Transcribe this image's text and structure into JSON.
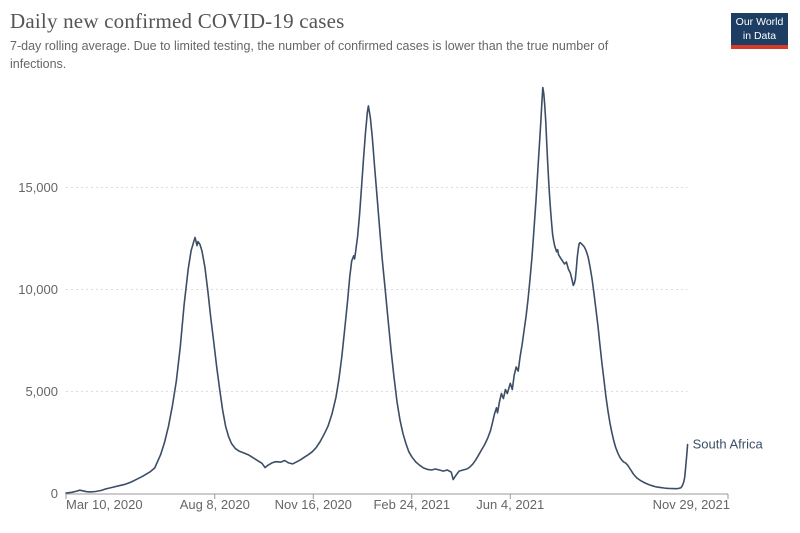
{
  "header": {
    "title": "Daily new confirmed COVID-19 cases",
    "subtitle": "7-day rolling average. Due to limited testing, the number of confirmed cases is lower than the true number of infections.",
    "logo": {
      "line1": "Our World",
      "line2": "in Data"
    }
  },
  "colors": {
    "line": "#3C4E66",
    "entity_label": "#3C4E66",
    "grid": "#DDDDDD",
    "axis": "#999999",
    "tick_label": "#666666",
    "title": "#555555",
    "subtitle": "#666666",
    "logo_bg": "#1D3D63",
    "logo_red": "#D73A27",
    "background": "#FFFFFF"
  },
  "chart_data": {
    "type": "line",
    "title": "Daily new confirmed COVID-19 cases",
    "subtitle": "7-day rolling average. Due to limited testing, the number of confirmed cases is lower than the true number of infections.",
    "entity": "South Africa",
    "xlabel": "",
    "ylabel": "",
    "grid": true,
    "legend_position": "end-of-line-label",
    "ylim": [
      0,
      20000
    ],
    "y_ticks": [
      {
        "value": 0,
        "label": "0"
      },
      {
        "value": 5000,
        "label": "5,000"
      },
      {
        "value": 10000,
        "label": "10,000"
      },
      {
        "value": 15000,
        "label": "15,000"
      }
    ],
    "x_domain": [
      "2020-03-10",
      "2022-01-11"
    ],
    "x_ticks": [
      {
        "date": "2020-03-10",
        "label": "Mar 10, 2020",
        "align": "start"
      },
      {
        "date": "2020-08-08",
        "label": "Aug 8, 2020",
        "align": "middle"
      },
      {
        "date": "2020-11-16",
        "label": "Nov 16, 2020",
        "align": "middle"
      },
      {
        "date": "2021-02-24",
        "label": "Feb 24, 2021",
        "align": "middle"
      },
      {
        "date": "2021-06-04",
        "label": "Jun 4, 2021",
        "align": "middle"
      },
      {
        "date": "2021-11-29",
        "label": "Nov 29, 2021",
        "align": "end"
      }
    ],
    "series": [
      {
        "name": "South Africa",
        "points": [
          [
            "2020-03-10",
            25
          ],
          [
            "2020-03-16",
            60
          ],
          [
            "2020-03-21",
            120
          ],
          [
            "2020-03-24",
            160
          ],
          [
            "2020-03-27",
            130
          ],
          [
            "2020-03-31",
            90
          ],
          [
            "2020-04-04",
            80
          ],
          [
            "2020-04-09",
            100
          ],
          [
            "2020-04-15",
            150
          ],
          [
            "2020-04-19",
            220
          ],
          [
            "2020-04-26",
            300
          ],
          [
            "2020-05-03",
            380
          ],
          [
            "2020-05-09",
            450
          ],
          [
            "2020-05-15",
            560
          ],
          [
            "2020-05-21",
            700
          ],
          [
            "2020-05-27",
            850
          ],
          [
            "2020-06-03",
            1050
          ],
          [
            "2020-06-08",
            1250
          ],
          [
            "2020-06-14",
            1900
          ],
          [
            "2020-06-18",
            2500
          ],
          [
            "2020-06-22",
            3300
          ],
          [
            "2020-06-26",
            4300
          ],
          [
            "2020-06-30",
            5500
          ],
          [
            "2020-07-04",
            7200
          ],
          [
            "2020-07-08",
            9300
          ],
          [
            "2020-07-12",
            11000
          ],
          [
            "2020-07-15",
            11900
          ],
          [
            "2020-07-18",
            12400
          ],
          [
            "2020-07-19",
            12550
          ],
          [
            "2020-07-21",
            12150
          ],
          [
            "2020-07-22",
            12350
          ],
          [
            "2020-07-24",
            12200
          ],
          [
            "2020-07-26",
            11900
          ],
          [
            "2020-07-29",
            11100
          ],
          [
            "2020-08-01",
            9900
          ],
          [
            "2020-08-04",
            8600
          ],
          [
            "2020-08-07",
            7400
          ],
          [
            "2020-08-10",
            6200
          ],
          [
            "2020-08-13",
            5100
          ],
          [
            "2020-08-16",
            4100
          ],
          [
            "2020-08-19",
            3300
          ],
          [
            "2020-08-22",
            2800
          ],
          [
            "2020-08-25",
            2450
          ],
          [
            "2020-08-29",
            2200
          ],
          [
            "2020-09-02",
            2070
          ],
          [
            "2020-09-06",
            2000
          ],
          [
            "2020-09-11",
            1900
          ],
          [
            "2020-09-16",
            1750
          ],
          [
            "2020-09-21",
            1600
          ],
          [
            "2020-09-25",
            1480
          ],
          [
            "2020-09-28",
            1270
          ],
          [
            "2020-10-01",
            1380
          ],
          [
            "2020-10-05",
            1500
          ],
          [
            "2020-10-09",
            1560
          ],
          [
            "2020-10-14",
            1540
          ],
          [
            "2020-10-18",
            1620
          ],
          [
            "2020-10-22",
            1500
          ],
          [
            "2020-10-26",
            1450
          ],
          [
            "2020-10-30",
            1550
          ],
          [
            "2020-11-03",
            1650
          ],
          [
            "2020-11-07",
            1780
          ],
          [
            "2020-11-11",
            1900
          ],
          [
            "2020-11-15",
            2050
          ],
          [
            "2020-11-19",
            2250
          ],
          [
            "2020-11-23",
            2550
          ],
          [
            "2020-11-27",
            2900
          ],
          [
            "2020-12-01",
            3300
          ],
          [
            "2020-12-05",
            3900
          ],
          [
            "2020-12-09",
            4700
          ],
          [
            "2020-12-12",
            5600
          ],
          [
            "2020-12-15",
            6700
          ],
          [
            "2020-12-18",
            8100
          ],
          [
            "2020-12-21",
            9500
          ],
          [
            "2020-12-23",
            10600
          ],
          [
            "2020-12-25",
            11400
          ],
          [
            "2020-12-27",
            11650
          ],
          [
            "2020-12-28",
            11500
          ],
          [
            "2020-12-29",
            11850
          ],
          [
            "2020-12-31",
            12600
          ],
          [
            "2021-01-02",
            13700
          ],
          [
            "2021-01-04",
            15000
          ],
          [
            "2021-01-06",
            16400
          ],
          [
            "2021-01-08",
            17700
          ],
          [
            "2021-01-10",
            18700
          ],
          [
            "2021-01-11",
            19000
          ],
          [
            "2021-01-13",
            18400
          ],
          [
            "2021-01-15",
            17400
          ],
          [
            "2021-01-17",
            16200
          ],
          [
            "2021-01-19",
            15000
          ],
          [
            "2021-01-21",
            13800
          ],
          [
            "2021-01-23",
            12600
          ],
          [
            "2021-01-25",
            11500
          ],
          [
            "2021-01-28",
            10000
          ],
          [
            "2021-01-31",
            8500
          ],
          [
            "2021-02-03",
            7000
          ],
          [
            "2021-02-06",
            5700
          ],
          [
            "2021-02-09",
            4500
          ],
          [
            "2021-02-12",
            3600
          ],
          [
            "2021-02-15",
            2950
          ],
          [
            "2021-02-18",
            2450
          ],
          [
            "2021-02-21",
            2050
          ],
          [
            "2021-02-24",
            1800
          ],
          [
            "2021-02-28",
            1550
          ],
          [
            "2021-03-04",
            1380
          ],
          [
            "2021-03-08",
            1250
          ],
          [
            "2021-03-12",
            1180
          ],
          [
            "2021-03-16",
            1150
          ],
          [
            "2021-03-20",
            1200
          ],
          [
            "2021-03-24",
            1150
          ],
          [
            "2021-03-28",
            1100
          ],
          [
            "2021-04-01",
            1150
          ],
          [
            "2021-04-05",
            1050
          ],
          [
            "2021-04-07",
            680
          ],
          [
            "2021-04-10",
            900
          ],
          [
            "2021-04-13",
            1100
          ],
          [
            "2021-04-17",
            1150
          ],
          [
            "2021-04-21",
            1200
          ],
          [
            "2021-04-24",
            1300
          ],
          [
            "2021-04-27",
            1450
          ],
          [
            "2021-04-30",
            1650
          ],
          [
            "2021-05-03",
            1900
          ],
          [
            "2021-05-06",
            2150
          ],
          [
            "2021-05-09",
            2400
          ],
          [
            "2021-05-12",
            2700
          ],
          [
            "2021-05-15",
            3100
          ],
          [
            "2021-05-17",
            3500
          ],
          [
            "2021-05-19",
            3900
          ],
          [
            "2021-05-21",
            4200
          ],
          [
            "2021-05-22",
            3950
          ],
          [
            "2021-05-24",
            4500
          ],
          [
            "2021-05-26",
            4900
          ],
          [
            "2021-05-28",
            4650
          ],
          [
            "2021-05-30",
            5100
          ],
          [
            "2021-06-01",
            4900
          ],
          [
            "2021-06-04",
            5400
          ],
          [
            "2021-06-06",
            5100
          ],
          [
            "2021-06-08",
            5800
          ],
          [
            "2021-06-10",
            6200
          ],
          [
            "2021-06-12",
            6000
          ],
          [
            "2021-06-14",
            6700
          ],
          [
            "2021-06-16",
            7300
          ],
          [
            "2021-06-18",
            8000
          ],
          [
            "2021-06-20",
            8700
          ],
          [
            "2021-06-22",
            9500
          ],
          [
            "2021-06-24",
            10500
          ],
          [
            "2021-06-26",
            11600
          ],
          [
            "2021-06-28",
            12900
          ],
          [
            "2021-06-30",
            14300
          ],
          [
            "2021-07-02",
            15900
          ],
          [
            "2021-07-04",
            17400
          ],
          [
            "2021-07-05",
            18200
          ],
          [
            "2021-07-06",
            19100
          ],
          [
            "2021-07-07",
            19900
          ],
          [
            "2021-07-08",
            19600
          ],
          [
            "2021-07-09",
            19000
          ],
          [
            "2021-07-10",
            18200
          ],
          [
            "2021-07-11",
            17200
          ],
          [
            "2021-07-12",
            16200
          ],
          [
            "2021-07-13",
            15300
          ],
          [
            "2021-07-14",
            14500
          ],
          [
            "2021-07-15",
            13800
          ],
          [
            "2021-07-16",
            13200
          ],
          [
            "2021-07-17",
            12700
          ],
          [
            "2021-07-18",
            12400
          ],
          [
            "2021-07-19",
            12150
          ],
          [
            "2021-07-20",
            12000
          ],
          [
            "2021-07-21",
            11850
          ],
          [
            "2021-07-22",
            11950
          ],
          [
            "2021-07-23",
            11700
          ],
          [
            "2021-07-25",
            11550
          ],
          [
            "2021-07-27",
            11400
          ],
          [
            "2021-07-29",
            11250
          ],
          [
            "2021-07-31",
            11350
          ],
          [
            "2021-08-02",
            11000
          ],
          [
            "2021-08-04",
            10800
          ],
          [
            "2021-08-06",
            10400
          ],
          [
            "2021-08-07",
            10200
          ],
          [
            "2021-08-08",
            10300
          ],
          [
            "2021-08-09",
            10500
          ],
          [
            "2021-08-10",
            11000
          ],
          [
            "2021-08-11",
            11600
          ],
          [
            "2021-08-12",
            12000
          ],
          [
            "2021-08-13",
            12250
          ],
          [
            "2021-08-14",
            12300
          ],
          [
            "2021-08-16",
            12200
          ],
          [
            "2021-08-18",
            12100
          ],
          [
            "2021-08-20",
            11900
          ],
          [
            "2021-08-22",
            11600
          ],
          [
            "2021-08-24",
            11100
          ],
          [
            "2021-08-26",
            10500
          ],
          [
            "2021-08-28",
            9800
          ],
          [
            "2021-08-30",
            9000
          ],
          [
            "2021-09-01",
            8200
          ],
          [
            "2021-09-03",
            7300
          ],
          [
            "2021-09-05",
            6400
          ],
          [
            "2021-09-07",
            5600
          ],
          [
            "2021-09-09",
            4800
          ],
          [
            "2021-09-11",
            4100
          ],
          [
            "2021-09-13",
            3500
          ],
          [
            "2021-09-15",
            3000
          ],
          [
            "2021-09-17",
            2600
          ],
          [
            "2021-09-19",
            2250
          ],
          [
            "2021-09-21",
            2000
          ],
          [
            "2021-09-23",
            1800
          ],
          [
            "2021-09-25",
            1650
          ],
          [
            "2021-09-27",
            1550
          ],
          [
            "2021-09-29",
            1500
          ],
          [
            "2021-10-01",
            1400
          ],
          [
            "2021-10-03",
            1250
          ],
          [
            "2021-10-05",
            1100
          ],
          [
            "2021-10-07",
            950
          ],
          [
            "2021-10-09",
            840
          ],
          [
            "2021-10-11",
            740
          ],
          [
            "2021-10-14",
            640
          ],
          [
            "2021-10-17",
            560
          ],
          [
            "2021-10-20",
            490
          ],
          [
            "2021-10-23",
            430
          ],
          [
            "2021-10-26",
            380
          ],
          [
            "2021-10-29",
            340
          ],
          [
            "2021-11-01",
            310
          ],
          [
            "2021-11-04",
            290
          ],
          [
            "2021-11-07",
            270
          ],
          [
            "2021-11-10",
            255
          ],
          [
            "2021-11-13",
            245
          ],
          [
            "2021-11-16",
            240
          ],
          [
            "2021-11-19",
            235
          ],
          [
            "2021-11-21",
            240
          ],
          [
            "2021-11-22",
            250
          ],
          [
            "2021-11-24",
            280
          ],
          [
            "2021-11-25",
            330
          ],
          [
            "2021-11-26",
            420
          ],
          [
            "2021-11-27",
            560
          ],
          [
            "2021-11-28",
            800
          ],
          [
            "2021-11-29",
            1250
          ],
          [
            "2021-11-30",
            1800
          ],
          [
            "2021-12-01",
            2400
          ]
        ]
      }
    ]
  }
}
